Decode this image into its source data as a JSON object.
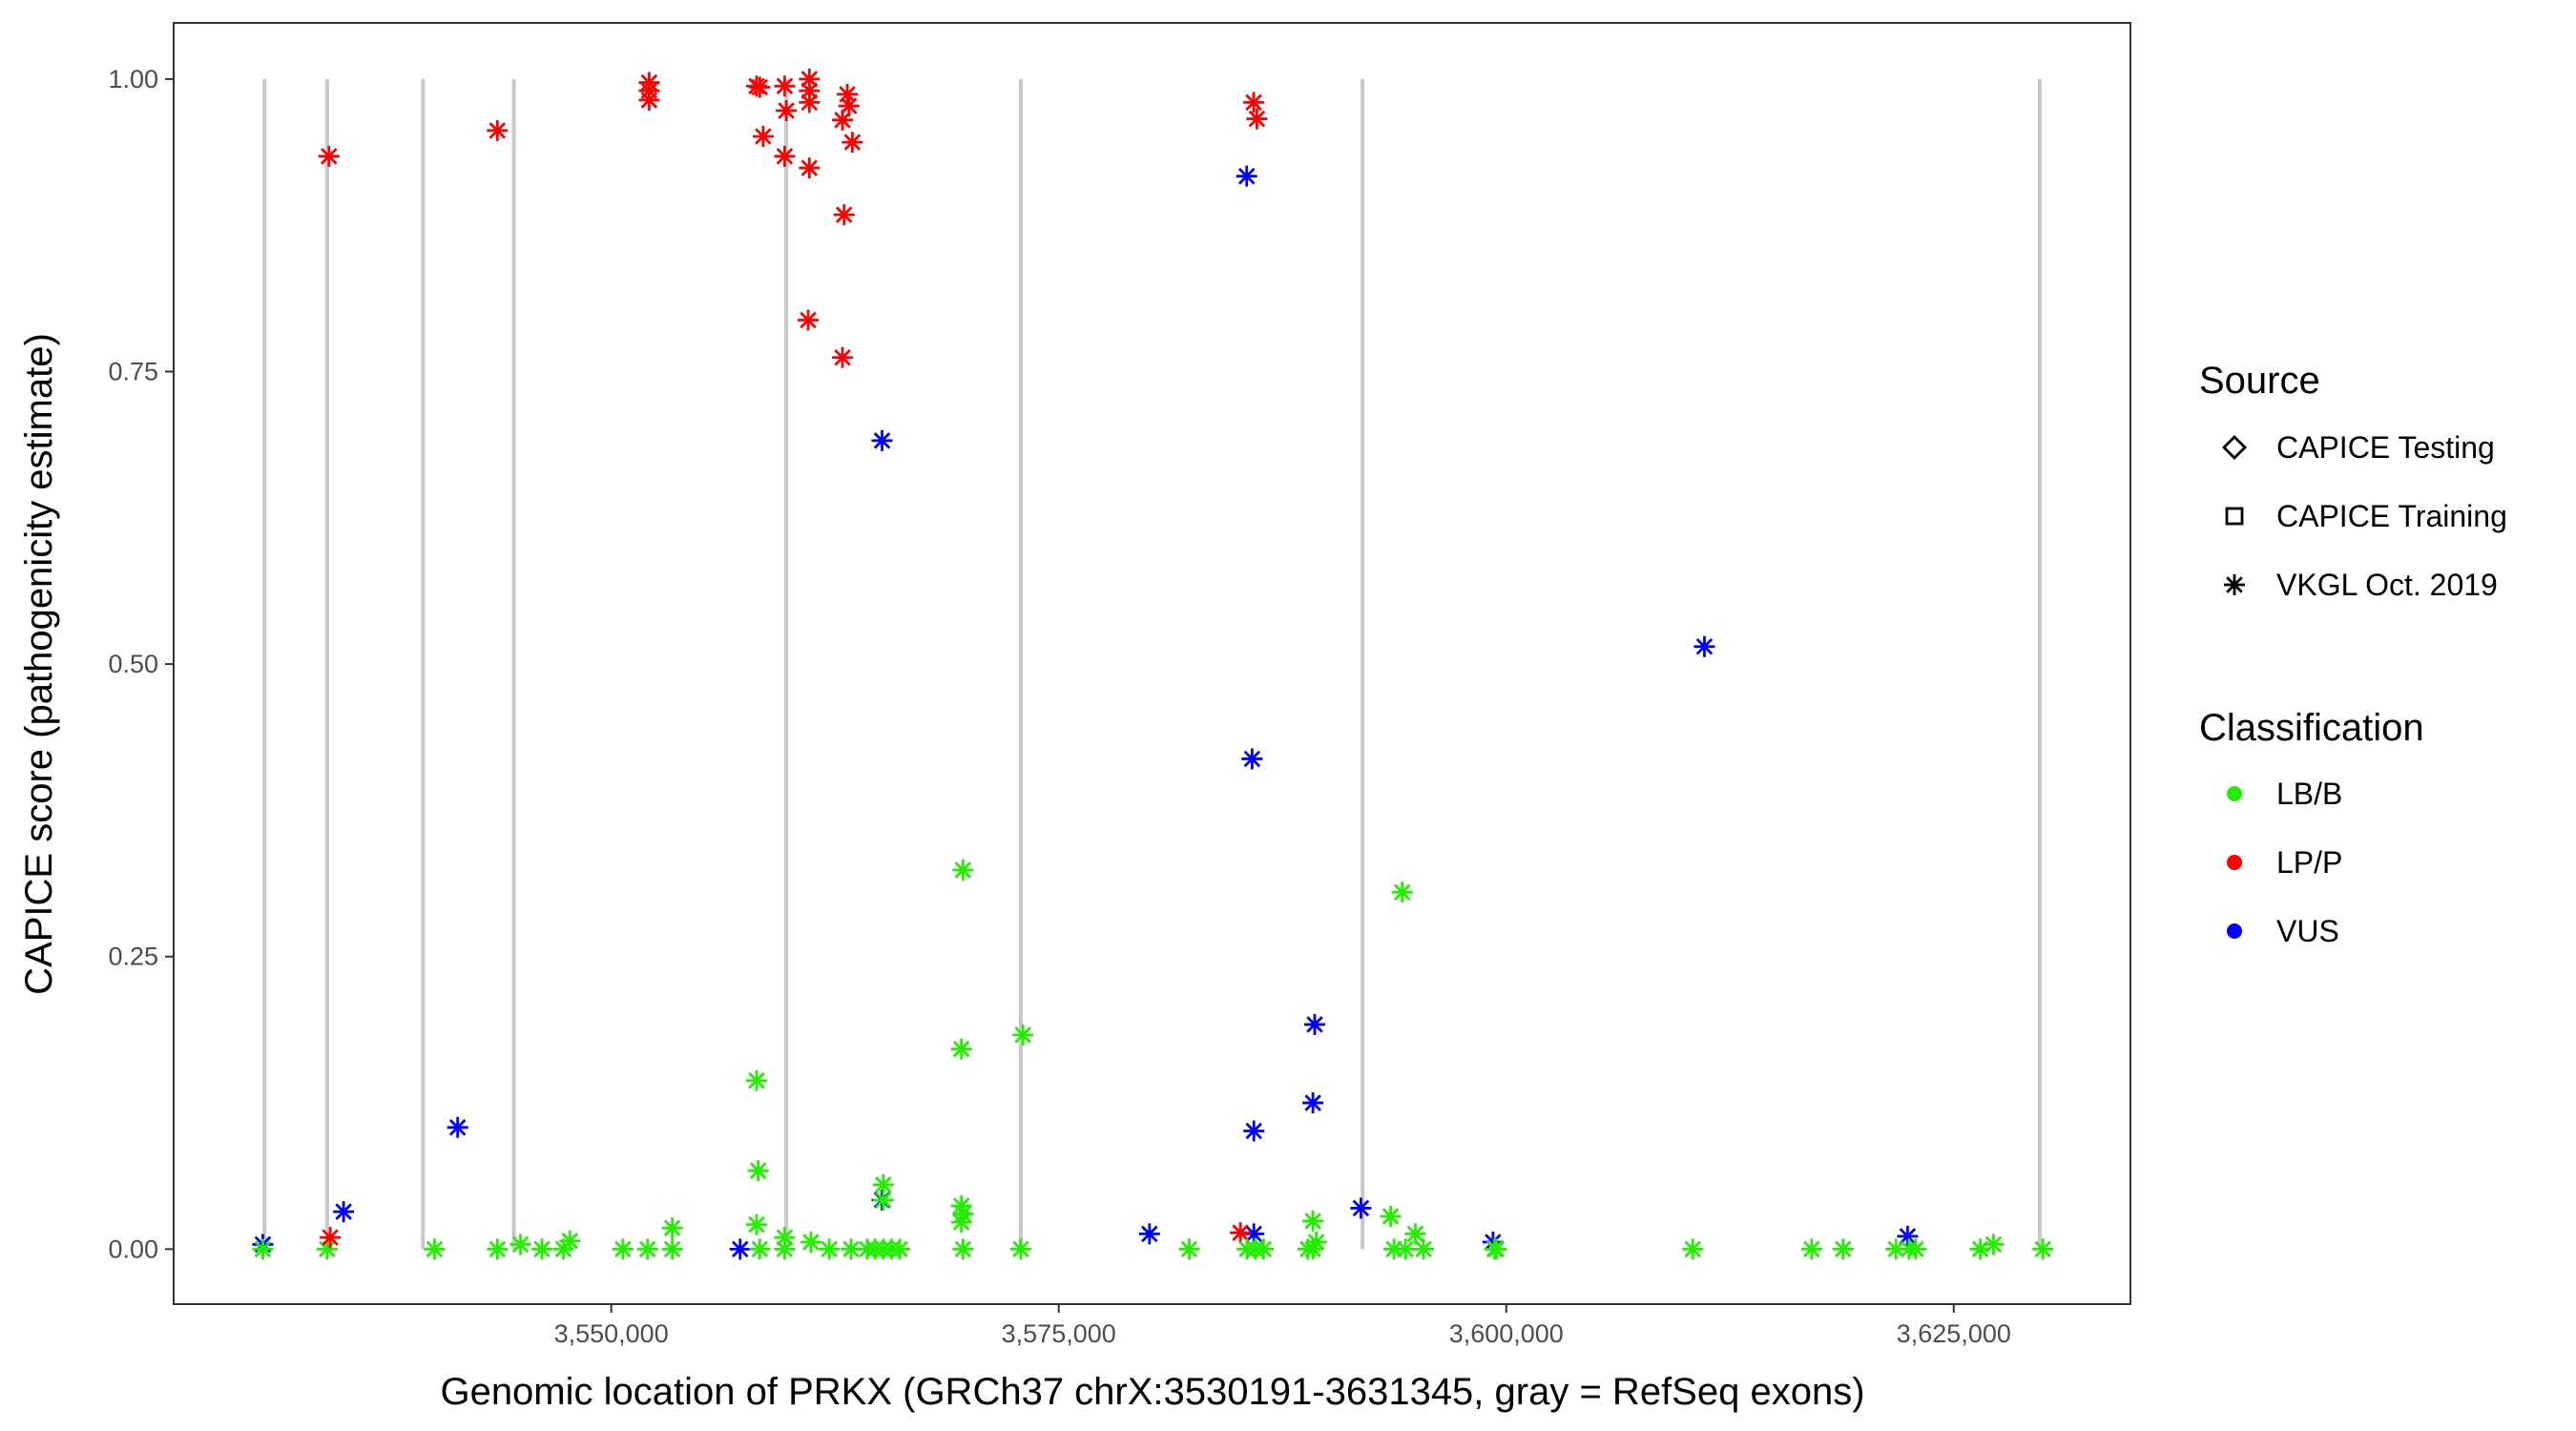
{
  "chart_data": {
    "type": "scatter",
    "xlabel": "Genomic location of PRKX (GRCh37 chrX:3530191-3631345, gray = RefSeq exons)",
    "ylabel": "CAPICE score (pathogenicity estimate)",
    "xlim": [
      3525554,
      3634870
    ],
    "ylim": [
      -0.047,
      1.048
    ],
    "x_ticks": [
      3550000,
      3575000,
      3600000,
      3625000
    ],
    "x_tick_labels": [
      "3,550,000",
      "3,575,000",
      "3,600,000",
      "3,625,000"
    ],
    "y_ticks": [
      0,
      0.25,
      0.5,
      0.75,
      1.0
    ],
    "y_tick_labels": [
      "0.00",
      "0.25",
      "0.50",
      "0.75",
      "1.00"
    ],
    "grid": false,
    "legend_placement": "right",
    "legend": {
      "source_title": "Source",
      "sources": [
        {
          "key": "testing",
          "label": "CAPICE Testing",
          "shape": "diamond"
        },
        {
          "key": "training",
          "label": "CAPICE Training",
          "shape": "square"
        },
        {
          "key": "vkgl",
          "label": "VKGL Oct. 2019",
          "shape": "asterisk"
        }
      ],
      "classification_title": "Classification",
      "classes": [
        {
          "key": "LBB",
          "label": "LB/B",
          "color": "#22EE00"
        },
        {
          "key": "LPP",
          "label": "LP/P",
          "color": "#FF0000"
        },
        {
          "key": "VUS",
          "label": "VUS",
          "color": "#0000FF"
        }
      ]
    },
    "exons": [
      3530630,
      3534130,
      3539480,
      3544560,
      3559780,
      3572880,
      3591970,
      3629800
    ],
    "points": [
      {
        "x": 3530535,
        "y": 0.004,
        "s": "vkgl",
        "c": "VUS"
      },
      {
        "x": 3530535,
        "y": 0.0,
        "s": "vkgl",
        "c": "LBB"
      },
      {
        "x": 3534130,
        "y": 0.0,
        "s": "vkgl",
        "c": "LBB"
      },
      {
        "x": 3534300,
        "y": 0.01,
        "s": "vkgl",
        "c": "LPP"
      },
      {
        "x": 3535050,
        "y": 0.032,
        "s": "vkgl",
        "c": "VUS"
      },
      {
        "x": 3541420,
        "y": 0.104,
        "s": "vkgl",
        "c": "VUS"
      },
      {
        "x": 3550650,
        "y": 0.0,
        "s": "vkgl",
        "c": "LBB"
      },
      {
        "x": 3557200,
        "y": 0.0,
        "s": "vkgl",
        "c": "VUS"
      },
      {
        "x": 3561000,
        "y": 0.794,
        "s": "vkgl",
        "c": "LPP"
      },
      {
        "x": 3565130,
        "y": 0.691,
        "s": "vkgl",
        "c": "VUS"
      },
      {
        "x": 3565130,
        "y": 0.042,
        "s": "vkgl",
        "c": "VUS"
      },
      {
        "x": 3563400,
        "y": 0.0,
        "s": "vkgl",
        "c": "LBB"
      },
      {
        "x": 3564300,
        "y": 0.0,
        "s": "vkgl",
        "c": "LBB"
      },
      {
        "x": 3565200,
        "y": 0.0,
        "s": "vkgl",
        "c": "LBB"
      },
      {
        "x": 3573000,
        "y": 0.183,
        "s": "vkgl",
        "c": "LBB"
      },
      {
        "x": 3580070,
        "y": 0.013,
        "s": "vkgl",
        "c": "VUS"
      },
      {
        "x": 3582290,
        "y": 0.0,
        "s": "vkgl",
        "c": "LBB"
      },
      {
        "x": 3585500,
        "y": 0.917,
        "s": "vkgl",
        "c": "VUS"
      },
      {
        "x": 3585800,
        "y": 0.419,
        "s": "vkgl",
        "c": "VUS"
      },
      {
        "x": 3585900,
        "y": 0.101,
        "s": "vkgl",
        "c": "VUS"
      },
      {
        "x": 3585900,
        "y": 0.013,
        "s": "vkgl",
        "c": "VUS"
      },
      {
        "x": 3589300,
        "y": 0.192,
        "s": "vkgl",
        "c": "VUS"
      },
      {
        "x": 3589200,
        "y": 0.125,
        "s": "vkgl",
        "c": "VUS"
      },
      {
        "x": 3589200,
        "y": 0.0,
        "s": "vkgl",
        "c": "LBB"
      },
      {
        "x": 3591880,
        "y": 0.035,
        "s": "vkgl",
        "c": "VUS"
      },
      {
        "x": 3594190,
        "y": 0.305,
        "s": "vkgl",
        "c": "LBB"
      },
      {
        "x": 3593730,
        "y": 0.0,
        "s": "vkgl",
        "c": "LBB"
      },
      {
        "x": 3594370,
        "y": 0.0,
        "s": "vkgl",
        "c": "LBB"
      },
      {
        "x": 3599260,
        "y": 0.006,
        "s": "vkgl",
        "c": "VUS"
      },
      {
        "x": 3599450,
        "y": 0.0,
        "s": "vkgl",
        "c": "LBB"
      },
      {
        "x": 3611070,
        "y": 0.515,
        "s": "vkgl",
        "c": "VUS"
      },
      {
        "x": 3618820,
        "y": 0.0,
        "s": "vkgl",
        "c": "LBB"
      },
      {
        "x": 3622420,
        "y": 0.011,
        "s": "vkgl",
        "c": "VUS"
      },
      {
        "x": 3622500,
        "y": 0.0,
        "s": "vkgl",
        "c": "LBB"
      },
      {
        "x": 3559690,
        "y": 0.934,
        "s": "testing",
        "c": "LPP"
      },
      {
        "x": 3562920,
        "y": 0.762,
        "s": "testing",
        "c": "LPP"
      },
      {
        "x": 3569650,
        "y": 0.324,
        "s": "testing",
        "c": "LBB"
      },
      {
        "x": 3569560,
        "y": 0.171,
        "s": "testing",
        "c": "LBB"
      },
      {
        "x": 3585150,
        "y": 0.014,
        "s": "testing",
        "c": "LPP"
      },
      {
        "x": 3534230,
        "y": 0.934,
        "s": "training",
        "c": "LPP"
      },
      {
        "x": 3543640,
        "y": 0.956,
        "s": "training",
        "c": "LPP"
      },
      {
        "x": 3552120,
        "y": 0.997,
        "s": "training",
        "c": "LPP"
      },
      {
        "x": 3552120,
        "y": 0.99,
        "s": "training",
        "c": "LPP"
      },
      {
        "x": 3552120,
        "y": 0.982,
        "s": "training",
        "c": "LPP"
      },
      {
        "x": 3558120,
        "y": 0.994,
        "s": "training",
        "c": "LPP"
      },
      {
        "x": 3558300,
        "y": 0.993,
        "s": "training",
        "c": "LPP"
      },
      {
        "x": 3558490,
        "y": 0.951,
        "s": "training",
        "c": "LPP"
      },
      {
        "x": 3559690,
        "y": 0.994,
        "s": "training",
        "c": "LPP"
      },
      {
        "x": 3559780,
        "y": 0.973,
        "s": "training",
        "c": "LPP"
      },
      {
        "x": 3561070,
        "y": 1.0,
        "s": "training",
        "c": "LPP"
      },
      {
        "x": 3561070,
        "y": 0.99,
        "s": "training",
        "c": "LPP"
      },
      {
        "x": 3561070,
        "y": 0.98,
        "s": "training",
        "c": "LPP"
      },
      {
        "x": 3561070,
        "y": 0.924,
        "s": "training",
        "c": "LPP"
      },
      {
        "x": 3563190,
        "y": 0.987,
        "s": "training",
        "c": "LPP"
      },
      {
        "x": 3563280,
        "y": 0.977,
        "s": "training",
        "c": "LPP"
      },
      {
        "x": 3562920,
        "y": 0.965,
        "s": "training",
        "c": "LPP"
      },
      {
        "x": 3563470,
        "y": 0.946,
        "s": "training",
        "c": "LPP"
      },
      {
        "x": 3563010,
        "y": 0.884,
        "s": "training",
        "c": "LPP"
      },
      {
        "x": 3585890,
        "y": 0.98,
        "s": "training",
        "c": "LPP"
      },
      {
        "x": 3586070,
        "y": 0.966,
        "s": "training",
        "c": "LPP"
      },
      {
        "x": 3540130,
        "y": 0.0,
        "s": "training",
        "c": "LBB"
      },
      {
        "x": 3543640,
        "y": 0.0,
        "s": "training",
        "c": "LBB"
      },
      {
        "x": 3544930,
        "y": 0.004,
        "s": "training",
        "c": "LBB"
      },
      {
        "x": 3546130,
        "y": 0.0,
        "s": "training",
        "c": "LBB"
      },
      {
        "x": 3547330,
        "y": 0.0,
        "s": "training",
        "c": "LBB"
      },
      {
        "x": 3547690,
        "y": 0.007,
        "s": "training",
        "c": "LBB"
      },
      {
        "x": 3552030,
        "y": 0.0,
        "s": "training",
        "c": "LBB"
      },
      {
        "x": 3553410,
        "y": 0.018,
        "s": "training",
        "c": "LBB"
      },
      {
        "x": 3553410,
        "y": 0.0,
        "s": "training",
        "c": "LBB"
      },
      {
        "x": 3558120,
        "y": 0.144,
        "s": "training",
        "c": "LBB"
      },
      {
        "x": 3558210,
        "y": 0.067,
        "s": "training",
        "c": "LBB"
      },
      {
        "x": 3558120,
        "y": 0.021,
        "s": "training",
        "c": "LBB"
      },
      {
        "x": 3558300,
        "y": 0.0,
        "s": "training",
        "c": "LBB"
      },
      {
        "x": 3559690,
        "y": 0.01,
        "s": "training",
        "c": "LBB"
      },
      {
        "x": 3559690,
        "y": 0.0,
        "s": "training",
        "c": "LBB"
      },
      {
        "x": 3561160,
        "y": 0.006,
        "s": "training",
        "c": "LBB"
      },
      {
        "x": 3562180,
        "y": 0.0,
        "s": "training",
        "c": "LBB"
      },
      {
        "x": 3565200,
        "y": 0.055,
        "s": "training",
        "c": "LBB"
      },
      {
        "x": 3565200,
        "y": 0.042,
        "s": "training",
        "c": "LBB"
      },
      {
        "x": 3564740,
        "y": 0.0,
        "s": "training",
        "c": "LBB"
      },
      {
        "x": 3565660,
        "y": 0.0,
        "s": "training",
        "c": "LBB"
      },
      {
        "x": 3566120,
        "y": 0.0,
        "s": "training",
        "c": "LBB"
      },
      {
        "x": 3569560,
        "y": 0.037,
        "s": "training",
        "c": "LBB"
      },
      {
        "x": 3569650,
        "y": 0.03,
        "s": "training",
        "c": "LBB"
      },
      {
        "x": 3569560,
        "y": 0.023,
        "s": "training",
        "c": "LBB"
      },
      {
        "x": 3569650,
        "y": 0.0,
        "s": "training",
        "c": "LBB"
      },
      {
        "x": 3572880,
        "y": 0.0,
        "s": "training",
        "c": "LBB"
      },
      {
        "x": 3585520,
        "y": 0.0,
        "s": "training",
        "c": "LBB"
      },
      {
        "x": 3585980,
        "y": 0.0,
        "s": "training",
        "c": "LBB"
      },
      {
        "x": 3586440,
        "y": 0.0,
        "s": "training",
        "c": "LBB"
      },
      {
        "x": 3589200,
        "y": 0.024,
        "s": "training",
        "c": "LBB"
      },
      {
        "x": 3589390,
        "y": 0.006,
        "s": "training",
        "c": "LBB"
      },
      {
        "x": 3588920,
        "y": 0.0,
        "s": "training",
        "c": "LBB"
      },
      {
        "x": 3593540,
        "y": 0.028,
        "s": "training",
        "c": "LBB"
      },
      {
        "x": 3594920,
        "y": 0.013,
        "s": "training",
        "c": "LBB"
      },
      {
        "x": 3595380,
        "y": 0.0,
        "s": "training",
        "c": "LBB"
      },
      {
        "x": 3599350,
        "y": 0.0,
        "s": "training",
        "c": "LBB"
      },
      {
        "x": 3610420,
        "y": 0.0,
        "s": "training",
        "c": "LBB"
      },
      {
        "x": 3617060,
        "y": 0.0,
        "s": "training",
        "c": "LBB"
      },
      {
        "x": 3621770,
        "y": 0.0,
        "s": "training",
        "c": "LBB"
      },
      {
        "x": 3622880,
        "y": 0.0,
        "s": "training",
        "c": "LBB"
      },
      {
        "x": 3626480,
        "y": 0.0,
        "s": "training",
        "c": "LBB"
      },
      {
        "x": 3627220,
        "y": 0.004,
        "s": "training",
        "c": "LBB"
      },
      {
        "x": 3629980,
        "y": 0.0,
        "s": "training",
        "c": "LBB"
      }
    ]
  }
}
